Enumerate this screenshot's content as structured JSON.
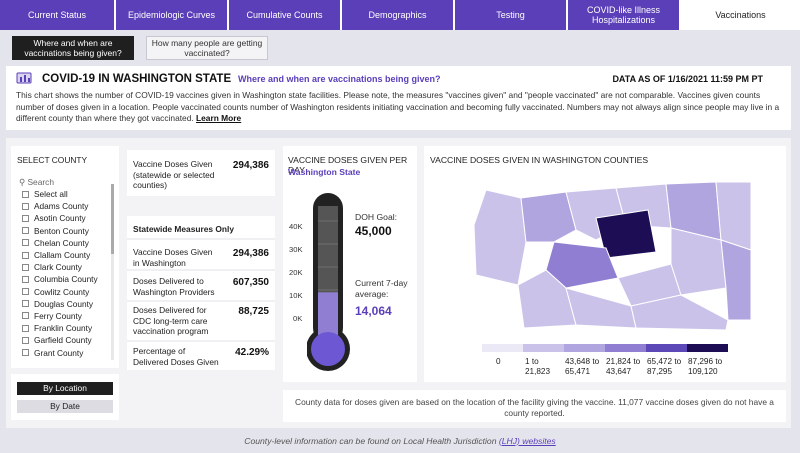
{
  "tabs": [
    "Current Status",
    "Epidemiologic Curves",
    "Cumulative Counts",
    "Demographics",
    "Testing",
    "COVID-like Illness Hospitalizations",
    "Vaccinations"
  ],
  "subtabs": [
    "Where and when are vaccinations being given?",
    "How many people are getting vaccinated?"
  ],
  "header": {
    "title": "COVID-19 IN WASHINGTON STATE",
    "subtitle": "Where and when are vaccinations being given?",
    "as_of": "DATA AS OF 1/16/2021 11:59 PM PT",
    "description": "This chart shows the number of COVID-19 vaccines given in Washington state facilities. Please note, the measures \"vaccines given\" and \"people vaccinated\" are not comparable. Vaccines given counts number of doses given in a location. People vaccinated counts number of Washington residents initiating vaccination and becoming fully vaccinated. Numbers may not always align since people may live in a different county than where they got vaccinated.",
    "learn_more": "Learn More"
  },
  "county_filter": {
    "title": "SELECT COUNTY",
    "search_placeholder": "Search",
    "items": [
      "Select all",
      "Adams County",
      "Asotin County",
      "Benton County",
      "Chelan County",
      "Clallam County",
      "Clark County",
      "Columbia County",
      "Cowlitz County",
      "Douglas County",
      "Ferry County",
      "Franklin County",
      "Garfield County",
      "Grant County"
    ],
    "btn_location": "By Location",
    "btn_date": "By Date"
  },
  "stats": {
    "doses_given_label": "Vaccine Doses Given (statewide or selected counties)",
    "doses_given_value": "294,386",
    "statewide_title": "Statewide Measures Only",
    "wa_doses_label": "Vaccine Doses Given in Washington",
    "wa_doses_value": "294,386",
    "delivered_label": "Doses Delivered to Washington Providers",
    "delivered_value": "607,350",
    "cdc_label": "Doses Delivered for CDC long-term care vaccination program",
    "cdc_value": "88,725",
    "pct_label": "Percentage of Delivered Doses Given",
    "pct_value": "42.29%"
  },
  "thermo": {
    "title": "VACCINE DOSES GIVEN PER DAY",
    "subtitle": "Washington State",
    "ticks": [
      "40K",
      "30K",
      "20K",
      "10K",
      "0K"
    ],
    "goal_label": "DOH Goal:",
    "goal_value": "45,000",
    "avg_label": "Current 7-day average:",
    "avg_value": "14,064"
  },
  "map": {
    "title": "VACCINE DOSES GIVEN IN WASHINGTON COUNTIES",
    "legend": [
      "0",
      "1 to 21,823",
      "43,648 to 65,471",
      "21,824 to 43,647",
      "65,472 to 87,295",
      "87,296 to 109,120"
    ],
    "note": "County data for doses given are based on the location of the facility giving the vaccine. 11,077 vaccine doses given do not have a county reported."
  },
  "footer": {
    "text": "County-level information can be found on Local Health Jurisdiction ",
    "link": "(LHJ) websites"
  },
  "chart_data": {
    "type": "bar",
    "title": "VACCINE DOSES GIVEN PER DAY",
    "categories": [
      "Current 7-day average",
      "DOH Goal"
    ],
    "values": [
      14064,
      45000
    ],
    "ylim": [
      0,
      45000
    ]
  },
  "colors": {
    "tab_purple": "#5b3fb8",
    "legend": [
      "#ece9f6",
      "#cbc2ea",
      "#b1a5e0",
      "#8f7ed2",
      "#5d48b8",
      "#1c0d54"
    ]
  }
}
